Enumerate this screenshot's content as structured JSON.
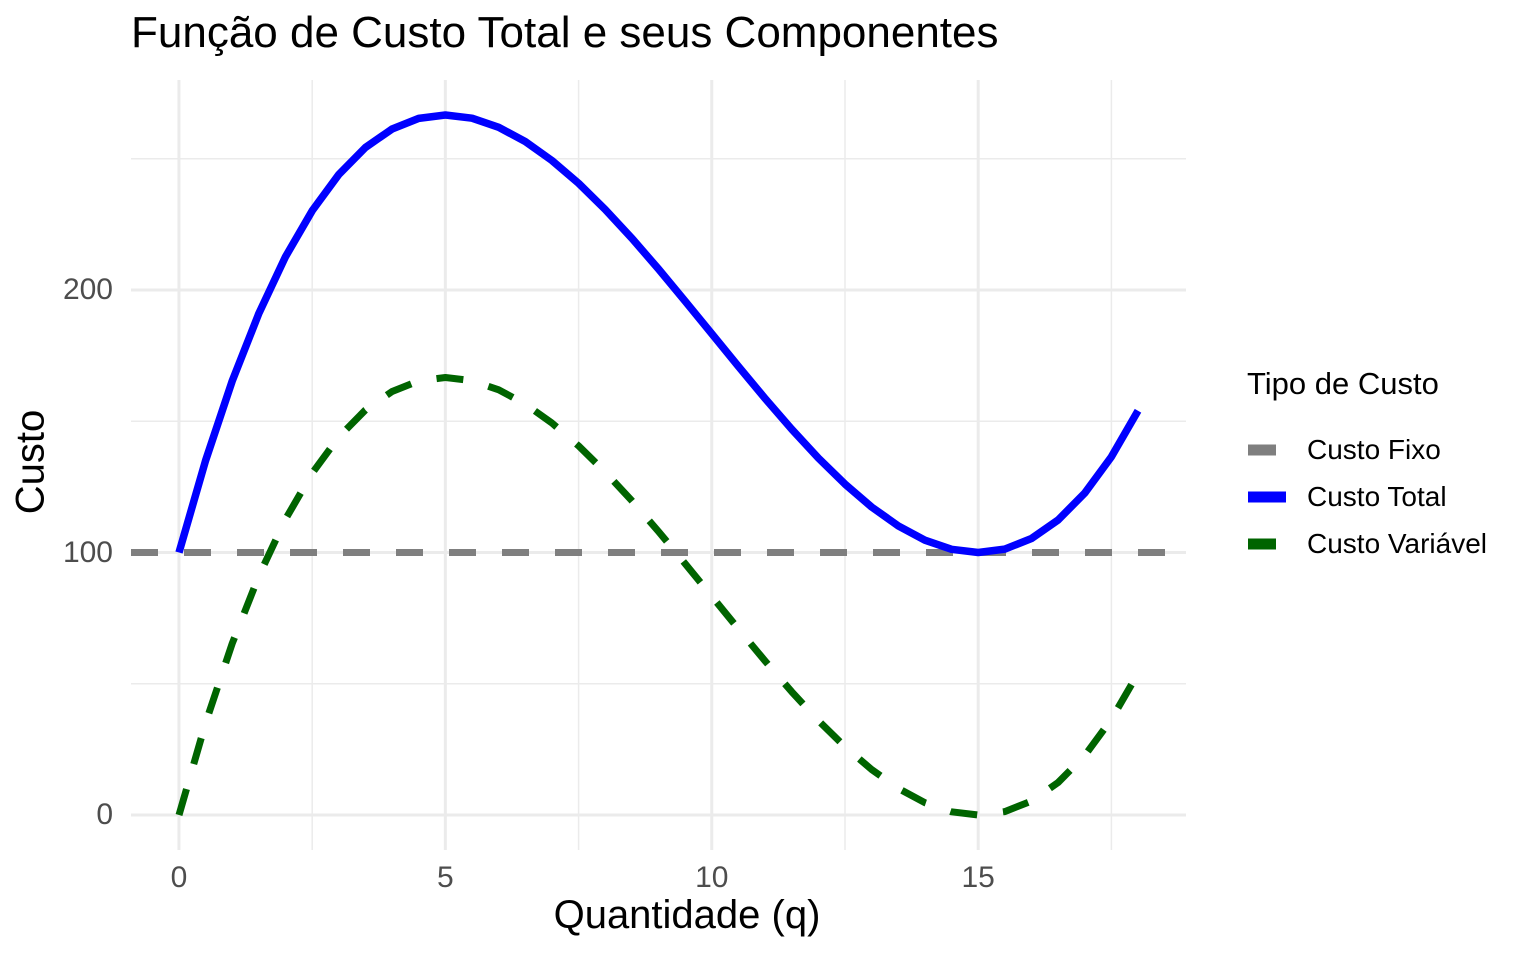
{
  "chart_data": {
    "type": "line",
    "title": "Função de Custo Total e seus Componentes",
    "xlabel": "Quantidade (q)",
    "ylabel": "Custo",
    "xlim": [
      -0.9,
      18.9
    ],
    "ylim": [
      -13.33,
      280
    ],
    "grid": "major+minor, light gray on white (ggplot theme_minimal)",
    "x_ticks": {
      "major": [
        0,
        5,
        10,
        15
      ],
      "minor": [
        2.5,
        7.5,
        12.5,
        17.5
      ]
    },
    "y_ticks": {
      "major": [
        0,
        100,
        200
      ],
      "minor": [
        50,
        150,
        250
      ]
    },
    "colors": {
      "grid": "#EBEBEB",
      "tick_text": "#4D4D4D",
      "custo_fixo": "#7F7F7F",
      "custo_total": "#0000FF",
      "custo_variavel": "#006400"
    },
    "legend": {
      "title": "Tipo de Custo",
      "position": "right"
    },
    "x_samples": [
      0,
      0.5,
      1,
      1.5,
      2,
      2.5,
      3,
      3.5,
      4,
      4.5,
      5,
      5.5,
      6,
      6.5,
      7,
      7.5,
      8,
      8.5,
      9,
      9.5,
      10,
      10.5,
      11,
      11.5,
      12,
      12.5,
      13,
      13.5,
      14,
      14.5,
      15,
      15.5,
      16,
      16.5,
      17,
      17.5,
      18
    ],
    "series": [
      {
        "name": "Custo Fixo",
        "color": "#7F7F7F",
        "linetype": "dashed",
        "span": "full-panel-width",
        "x": [
          -0.9,
          18.9
        ],
        "y": [
          100,
          100
        ]
      },
      {
        "name": "Custo Total",
        "color": "#0000FF",
        "linetype": "solid",
        "use_x_samples": true,
        "y": [
          100,
          135.04,
          165.33,
          191.13,
          212.67,
          230.21,
          244,
          254.29,
          261.33,
          265.38,
          266.67,
          265.46,
          262,
          256.54,
          249.33,
          240.63,
          230.67,
          219.71,
          208,
          195.79,
          183.33,
          170.88,
          158.67,
          146.96,
          136,
          126.04,
          117.33,
          110.13,
          104.67,
          101.21,
          100,
          101.29,
          105.33,
          112.38,
          122.67,
          136.46,
          154
        ]
      },
      {
        "name": "Custo Variável",
        "color": "#006400",
        "linetype": "dashed",
        "use_x_samples": true,
        "y": [
          0,
          35.04,
          65.33,
          91.13,
          112.67,
          130.21,
          144,
          154.29,
          161.33,
          165.38,
          166.67,
          165.46,
          162,
          156.54,
          149.33,
          140.63,
          130.67,
          119.71,
          108,
          95.79,
          83.33,
          70.88,
          58.67,
          46.96,
          36,
          26.04,
          17.33,
          10.13,
          4.67,
          1.21,
          0,
          1.29,
          5.33,
          12.38,
          22.67,
          36.46,
          54
        ]
      }
    ]
  }
}
